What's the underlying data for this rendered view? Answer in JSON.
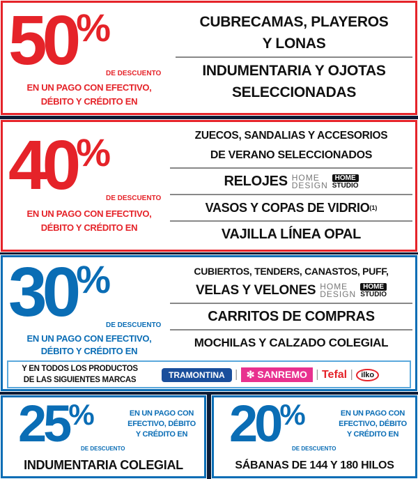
{
  "promo_50": {
    "number": "50",
    "percent": "%",
    "discount": "DE DESCUENTO",
    "payment": [
      "EN UN PAGO CON EFECTIVO,",
      "DÉBITO Y CRÉDITO EN"
    ],
    "items": [
      [
        "CUBRECAMAS, PLAYEROS",
        "Y LONAS"
      ],
      [
        "INDUMENTARIA Y OJOTAS",
        "SELECCIONADAS"
      ]
    ],
    "color": "#e52329"
  },
  "promo_40": {
    "number": "40",
    "percent": "%",
    "discount": "DE DESCUENTO",
    "payment": [
      "EN UN PAGO CON EFECTIVO,",
      "DÉBITO Y CRÉDITO EN"
    ],
    "items": [
      [
        "ZUECOS, SANDALIAS Y ACCESORIOS",
        "DE VERANO SELECCIONADOS"
      ],
      "RELOJES",
      "VASOS Y COPAS DE VIDRIO",
      "VAJILLA LÍNEA OPAL"
    ],
    "footnote": "(1)",
    "color": "#e52329"
  },
  "home_design": [
    "HOME",
    "DESIGN"
  ],
  "home_studio": [
    "HOME",
    "STUDIO"
  ],
  "promo_30": {
    "number": "30",
    "percent": "%",
    "discount": "DE DESCUENTO",
    "payment": [
      "EN UN PAGO CON EFECTIVO,",
      "DÉBITO Y CRÉDITO EN"
    ],
    "items": [
      "CUBIERTOS, TENDERS, CANASTOS, PUFF,",
      "VELAS Y VELONES",
      "CARRITOS DE COMPRAS",
      "MOCHILAS Y CALZADO COLEGIAL"
    ],
    "brands_text": [
      "Y EN TODOS LOS PRODUCTOS",
      "DE LAS SIGUIENTES MARCAS"
    ],
    "brands": [
      "TRAMONTINA",
      "SANREMO",
      "Tefal",
      "ilko"
    ],
    "color": "#0a6db5"
  },
  "promo_25": {
    "number": "25",
    "percent": "%",
    "discount": "DE DESCUENTO",
    "payment": [
      "EN UN PAGO CON",
      "EFECTIVO, DÉBITO",
      "Y CRÉDITO EN"
    ],
    "item": "INDUMENTARIA COLEGIAL"
  },
  "promo_20": {
    "number": "20",
    "percent": "%",
    "discount": "DE DESCUENTO",
    "payment": [
      "EN UN PAGO CON",
      "EFECTIVO, DÉBITO",
      "Y CRÉDITO EN"
    ],
    "item": "SÁBANAS DE 144 Y 180 HILOS"
  }
}
